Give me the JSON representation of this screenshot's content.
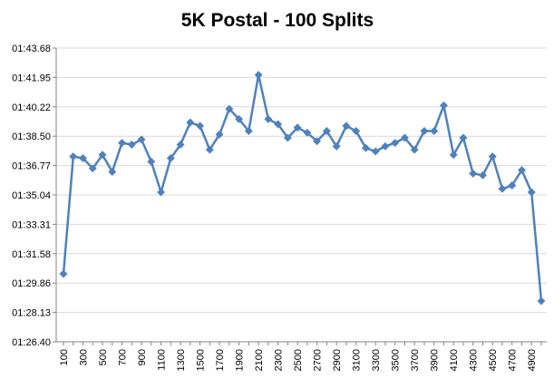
{
  "chart_data": {
    "type": "line",
    "title": "5K Postal - 100 Splits",
    "xlabel": "",
    "ylabel": "",
    "x_tick_labels": [
      "100",
      "300",
      "500",
      "700",
      "900",
      "1100",
      "1300",
      "1500",
      "1700",
      "1900",
      "2100",
      "2300",
      "2500",
      "2700",
      "2900",
      "3100",
      "3300",
      "3500",
      "3700",
      "3900",
      "4100",
      "4300",
      "4500",
      "4700",
      "4900"
    ],
    "y_tick_labels": [
      "01:26.40",
      "01:28.13",
      "01:29.86",
      "01:31.58",
      "01:33.31",
      "01:35.04",
      "01:36.77",
      "01:38.50",
      "01:40.22",
      "01:41.95",
      "01:43.68"
    ],
    "ylim": [
      86.4,
      103.68
    ],
    "grid": "horizontal",
    "legend": "none",
    "series": [
      {
        "color": "#4F81BD",
        "marker": "diamond",
        "x": [
          100,
          200,
          300,
          400,
          500,
          600,
          700,
          800,
          900,
          1000,
          1100,
          1200,
          1300,
          1400,
          1500,
          1600,
          1700,
          1800,
          1900,
          2000,
          2100,
          2200,
          2300,
          2400,
          2500,
          2600,
          2700,
          2800,
          2900,
          3000,
          3100,
          3200,
          3300,
          3400,
          3500,
          3600,
          3700,
          3800,
          3900,
          4000,
          4100,
          4200,
          4300,
          4400,
          4500,
          4600,
          4700,
          4800,
          4900,
          5000
        ],
        "values": [
          90.4,
          97.3,
          97.2,
          96.6,
          97.4,
          96.4,
          98.1,
          98.0,
          98.3,
          97.0,
          95.2,
          97.2,
          98.0,
          99.3,
          99.1,
          97.7,
          98.6,
          100.1,
          99.5,
          98.8,
          102.1,
          99.5,
          99.2,
          98.4,
          99.0,
          98.7,
          98.2,
          98.8,
          97.9,
          99.1,
          98.8,
          97.8,
          97.6,
          97.9,
          98.1,
          98.4,
          97.7,
          98.8,
          98.8,
          100.3,
          97.4,
          98.4,
          96.3,
          96.2,
          97.3,
          95.4,
          95.6,
          96.5,
          95.2,
          88.8
        ]
      }
    ]
  }
}
